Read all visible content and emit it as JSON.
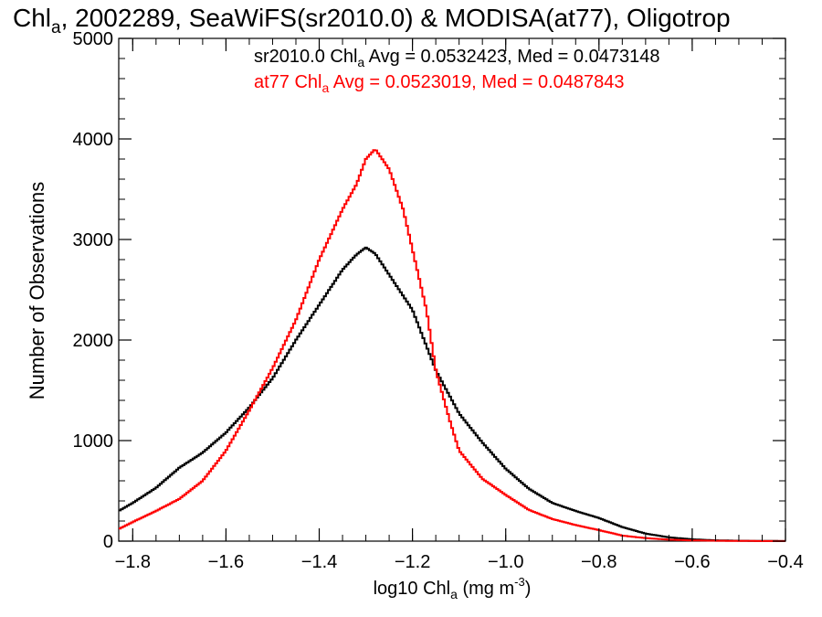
{
  "chart_data": {
    "type": "line",
    "title": {
      "prefix": "Chl",
      "sub": "a",
      "suffix": ", 2002289, SeaWiFS(sr2010.0) & MODISA(at77), Oligotrop"
    },
    "xlabel": {
      "prefix": "log10 Chl",
      "sub": "a",
      "mid": " (mg m",
      "sup": "-3",
      "suffix": ")"
    },
    "ylabel": "Number of Observations",
    "xlim": [
      -1.83,
      -0.4
    ],
    "ylim": [
      0,
      5000
    ],
    "x_ticks": [
      -1.8,
      -1.6,
      -1.4,
      -1.2,
      -1.0,
      -0.8,
      -0.6,
      -0.4
    ],
    "x_tick_labels": [
      "−1.8",
      "−1.6",
      "−1.4",
      "−1.2",
      "−1.0",
      "−0.8",
      "−0.6",
      "−0.4"
    ],
    "y_ticks": [
      0,
      1000,
      2000,
      3000,
      4000,
      5000
    ],
    "y_tick_labels": [
      "0",
      "1000",
      "2000",
      "3000",
      "4000",
      "5000"
    ],
    "grid": false,
    "series": [
      {
        "name": "sr2010.0",
        "color": "#000000",
        "legend": {
          "prefix": "sr2010.0 Chl",
          "sub": "a",
          "suffix": " Avg = 0.0532423, Med = 0.0473148"
        },
        "points": [
          [
            -1.83,
            300
          ],
          [
            -1.8,
            380
          ],
          [
            -1.75,
            530
          ],
          [
            -1.7,
            730
          ],
          [
            -1.65,
            880
          ],
          [
            -1.6,
            1080
          ],
          [
            -1.55,
            1330
          ],
          [
            -1.5,
            1620
          ],
          [
            -1.45,
            2000
          ],
          [
            -1.4,
            2350
          ],
          [
            -1.35,
            2700
          ],
          [
            -1.32,
            2850
          ],
          [
            -1.3,
            2920
          ],
          [
            -1.28,
            2860
          ],
          [
            -1.25,
            2650
          ],
          [
            -1.2,
            2300
          ],
          [
            -1.15,
            1700
          ],
          [
            -1.1,
            1270
          ],
          [
            -1.05,
            980
          ],
          [
            -1.0,
            720
          ],
          [
            -0.95,
            520
          ],
          [
            -0.9,
            380
          ],
          [
            -0.85,
            300
          ],
          [
            -0.8,
            230
          ],
          [
            -0.75,
            140
          ],
          [
            -0.7,
            75
          ],
          [
            -0.65,
            38
          ],
          [
            -0.6,
            18
          ],
          [
            -0.55,
            8
          ],
          [
            -0.5,
            4
          ],
          [
            -0.45,
            2
          ],
          [
            -0.4,
            1
          ]
        ]
      },
      {
        "name": "at77",
        "color": "#ff0000",
        "legend": {
          "prefix": "at77 Chl",
          "sub": "a",
          "suffix": " Avg = 0.0523019, Med = 0.0487843"
        },
        "points": [
          [
            -1.83,
            120
          ],
          [
            -1.8,
            190
          ],
          [
            -1.75,
            300
          ],
          [
            -1.7,
            420
          ],
          [
            -1.65,
            600
          ],
          [
            -1.6,
            900
          ],
          [
            -1.55,
            1300
          ],
          [
            -1.5,
            1720
          ],
          [
            -1.45,
            2200
          ],
          [
            -1.4,
            2800
          ],
          [
            -1.35,
            3300
          ],
          [
            -1.32,
            3550
          ],
          [
            -1.3,
            3800
          ],
          [
            -1.28,
            3900
          ],
          [
            -1.25,
            3700
          ],
          [
            -1.22,
            3300
          ],
          [
            -1.2,
            2900
          ],
          [
            -1.17,
            2300
          ],
          [
            -1.15,
            1700
          ],
          [
            -1.12,
            1200
          ],
          [
            -1.1,
            900
          ],
          [
            -1.05,
            620
          ],
          [
            -1.0,
            460
          ],
          [
            -0.95,
            310
          ],
          [
            -0.9,
            220
          ],
          [
            -0.85,
            160
          ],
          [
            -0.8,
            110
          ],
          [
            -0.75,
            55
          ],
          [
            -0.7,
            30
          ],
          [
            -0.65,
            15
          ],
          [
            -0.6,
            7
          ],
          [
            -0.55,
            4
          ],
          [
            -0.5,
            2
          ],
          [
            -0.45,
            1
          ],
          [
            -0.4,
            1
          ]
        ]
      }
    ]
  }
}
